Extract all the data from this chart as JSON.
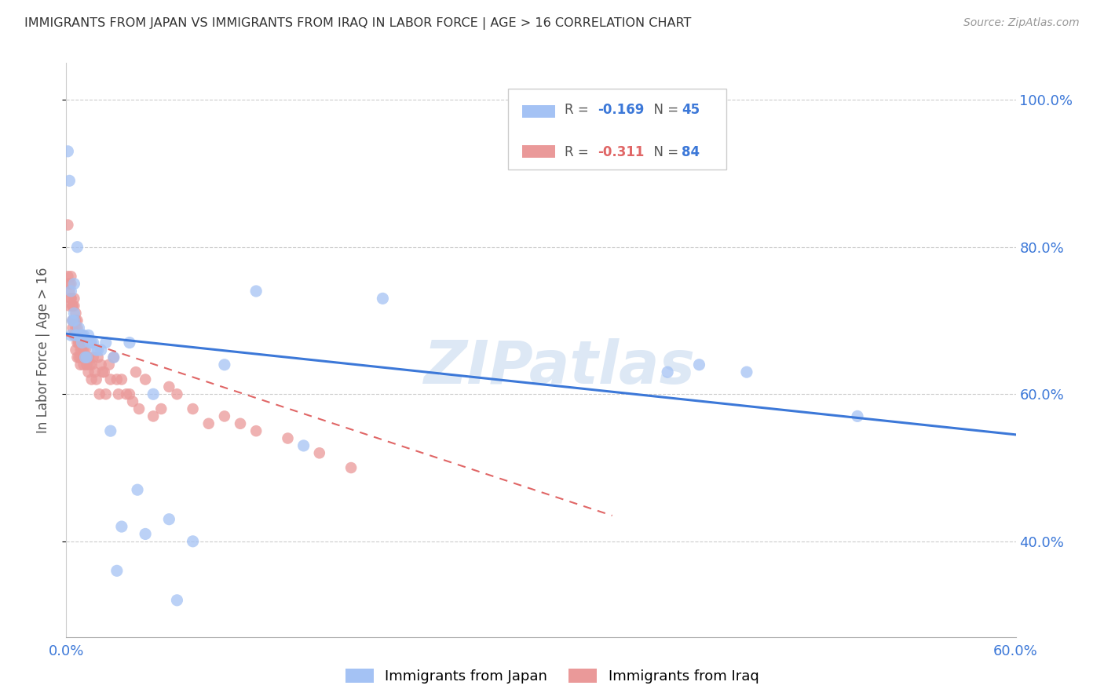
{
  "title": "IMMIGRANTS FROM JAPAN VS IMMIGRANTS FROM IRAQ IN LABOR FORCE | AGE > 16 CORRELATION CHART",
  "source": "Source: ZipAtlas.com",
  "ylabel": "In Labor Force | Age > 16",
  "watermark": "ZIPatlas",
  "legend_japan_R": "-0.169",
  "legend_japan_N": "45",
  "legend_iraq_R": "-0.311",
  "legend_iraq_N": "84",
  "legend_japan_label": "Immigrants from Japan",
  "legend_iraq_label": "Immigrants from Iraq",
  "color_japan": "#a4c2f4",
  "color_iraq": "#ea9999",
  "color_japan_line": "#3c78d8",
  "color_iraq_line": "#e06666",
  "color_ticks": "#3c78d8",
  "xlim": [
    0.0,
    0.6
  ],
  "ylim": [
    0.27,
    1.05
  ],
  "xlim_display": [
    0.0,
    0.6
  ],
  "xtick_positions": [
    0.0,
    0.6
  ],
  "xtick_labels": [
    "0.0%",
    "60.0%"
  ],
  "ytick_positions": [
    0.4,
    0.6,
    0.8,
    1.0
  ],
  "ytick_labels": [
    "40.0%",
    "60.0%",
    "80.0%",
    "100.0%"
  ],
  "japan_x": [
    0.001,
    0.002,
    0.003,
    0.003,
    0.004,
    0.005,
    0.005,
    0.005,
    0.006,
    0.007,
    0.007,
    0.008,
    0.009,
    0.01,
    0.01,
    0.011,
    0.012,
    0.013,
    0.014,
    0.015,
    0.016,
    0.017,
    0.019,
    0.02,
    0.022,
    0.025,
    0.028,
    0.03,
    0.032,
    0.035,
    0.04,
    0.045,
    0.05,
    0.055,
    0.065,
    0.07,
    0.08,
    0.1,
    0.12,
    0.15,
    0.2,
    0.38,
    0.4,
    0.43,
    0.5
  ],
  "japan_y": [
    0.93,
    0.89,
    0.68,
    0.74,
    0.7,
    0.71,
    0.7,
    0.75,
    0.68,
    0.8,
    0.68,
    0.69,
    0.68,
    0.68,
    0.67,
    0.68,
    0.65,
    0.65,
    0.68,
    0.67,
    0.67,
    0.67,
    0.66,
    0.66,
    0.66,
    0.67,
    0.55,
    0.65,
    0.36,
    0.42,
    0.67,
    0.47,
    0.41,
    0.6,
    0.43,
    0.32,
    0.4,
    0.64,
    0.74,
    0.53,
    0.73,
    0.63,
    0.64,
    0.63,
    0.57
  ],
  "iraq_x": [
    0.001,
    0.001,
    0.002,
    0.002,
    0.002,
    0.003,
    0.003,
    0.003,
    0.003,
    0.004,
    0.004,
    0.004,
    0.004,
    0.005,
    0.005,
    0.005,
    0.005,
    0.005,
    0.006,
    0.006,
    0.006,
    0.006,
    0.006,
    0.007,
    0.007,
    0.007,
    0.007,
    0.007,
    0.008,
    0.008,
    0.008,
    0.008,
    0.009,
    0.009,
    0.009,
    0.009,
    0.01,
    0.01,
    0.01,
    0.011,
    0.011,
    0.011,
    0.012,
    0.012,
    0.013,
    0.013,
    0.014,
    0.014,
    0.015,
    0.016,
    0.016,
    0.017,
    0.018,
    0.019,
    0.02,
    0.021,
    0.022,
    0.023,
    0.024,
    0.025,
    0.027,
    0.028,
    0.03,
    0.032,
    0.033,
    0.035,
    0.038,
    0.04,
    0.042,
    0.044,
    0.046,
    0.05,
    0.055,
    0.06,
    0.065,
    0.07,
    0.08,
    0.09,
    0.1,
    0.11,
    0.12,
    0.14,
    0.16,
    0.18
  ],
  "iraq_y": [
    0.83,
    0.76,
    0.74,
    0.75,
    0.72,
    0.76,
    0.73,
    0.75,
    0.73,
    0.72,
    0.7,
    0.72,
    0.69,
    0.72,
    0.7,
    0.7,
    0.68,
    0.73,
    0.7,
    0.69,
    0.71,
    0.68,
    0.66,
    0.7,
    0.69,
    0.67,
    0.65,
    0.68,
    0.68,
    0.67,
    0.65,
    0.67,
    0.67,
    0.66,
    0.65,
    0.64,
    0.68,
    0.67,
    0.66,
    0.65,
    0.64,
    0.66,
    0.65,
    0.66,
    0.65,
    0.64,
    0.65,
    0.63,
    0.64,
    0.64,
    0.62,
    0.65,
    0.63,
    0.62,
    0.65,
    0.6,
    0.64,
    0.63,
    0.63,
    0.6,
    0.64,
    0.62,
    0.65,
    0.62,
    0.6,
    0.62,
    0.6,
    0.6,
    0.59,
    0.63,
    0.58,
    0.62,
    0.57,
    0.58,
    0.61,
    0.6,
    0.58,
    0.56,
    0.57,
    0.56,
    0.55,
    0.54,
    0.52,
    0.5
  ],
  "japan_line_x": [
    0.0,
    0.6
  ],
  "japan_line_y": [
    0.682,
    0.545
  ],
  "iraq_line_x": [
    0.0,
    0.345
  ],
  "iraq_line_y": [
    0.68,
    0.435
  ]
}
